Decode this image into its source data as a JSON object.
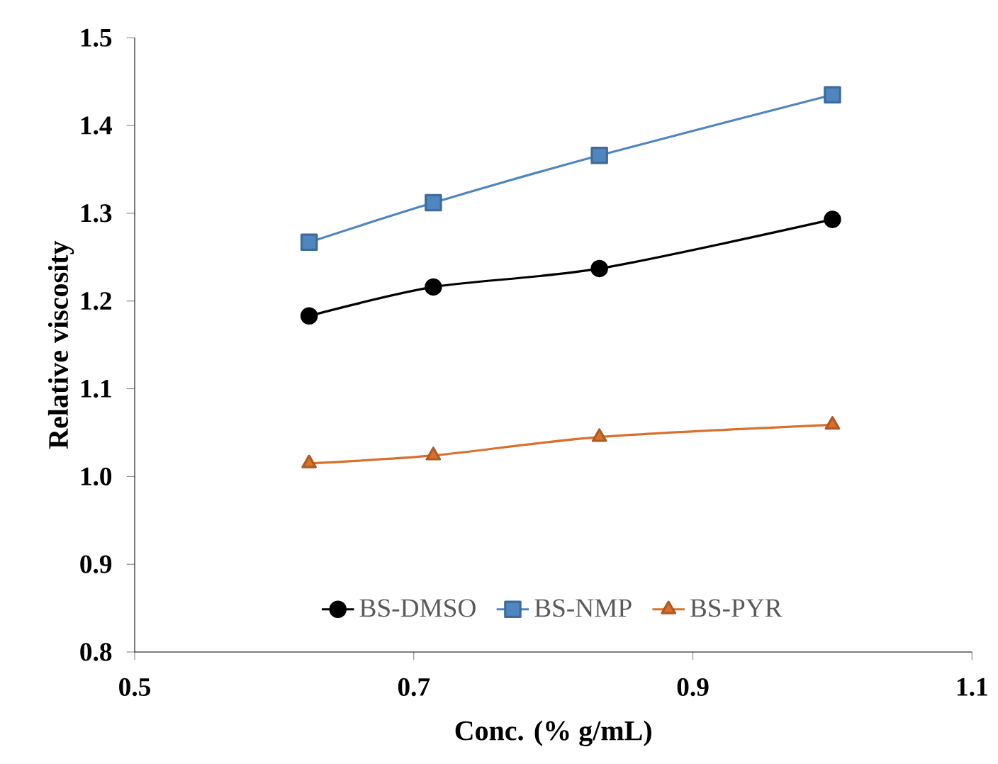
{
  "chart_data": {
    "type": "line",
    "xlabel": "Conc. (% g/mL)",
    "ylabel": "Relative viscosity",
    "x": [
      0.625,
      0.714,
      0.833,
      1.0
    ],
    "series": [
      {
        "name": "BS-DMSO",
        "color": "#000000",
        "marker": "circle",
        "values": [
          1.183,
          1.216,
          1.237,
          1.293
        ]
      },
      {
        "name": "BS-NMP",
        "color": "#4f86c0",
        "marker": "square",
        "values": [
          1.267,
          1.312,
          1.366,
          1.435
        ]
      },
      {
        "name": "BS-PYR",
        "color": "#d9702a",
        "marker": "triangle",
        "values": [
          1.015,
          1.024,
          1.045,
          1.059
        ]
      }
    ],
    "xlim": [
      0.5,
      1.1
    ],
    "xticks": [
      {
        "value": 0.5,
        "label": "0.5"
      },
      {
        "value": 0.7,
        "label": "0.7"
      },
      {
        "value": 0.9,
        "label": "0.9"
      },
      {
        "value": 1.1,
        "label": "1.1"
      }
    ],
    "ylim": [
      0.8,
      1.5
    ],
    "yticks": [
      {
        "value": 0.8,
        "label": "0.8"
      },
      {
        "value": 0.9,
        "label": "0.9"
      },
      {
        "value": 1.0,
        "label": "1.0"
      },
      {
        "value": 1.1,
        "label": "1.1"
      },
      {
        "value": 1.2,
        "label": "1.2"
      },
      {
        "value": 1.3,
        "label": "1.3"
      },
      {
        "value": 1.4,
        "label": "1.4"
      },
      {
        "value": 1.5,
        "label": "1.5"
      }
    ],
    "grid": false,
    "legend": "bottom",
    "line_style": "solid"
  }
}
